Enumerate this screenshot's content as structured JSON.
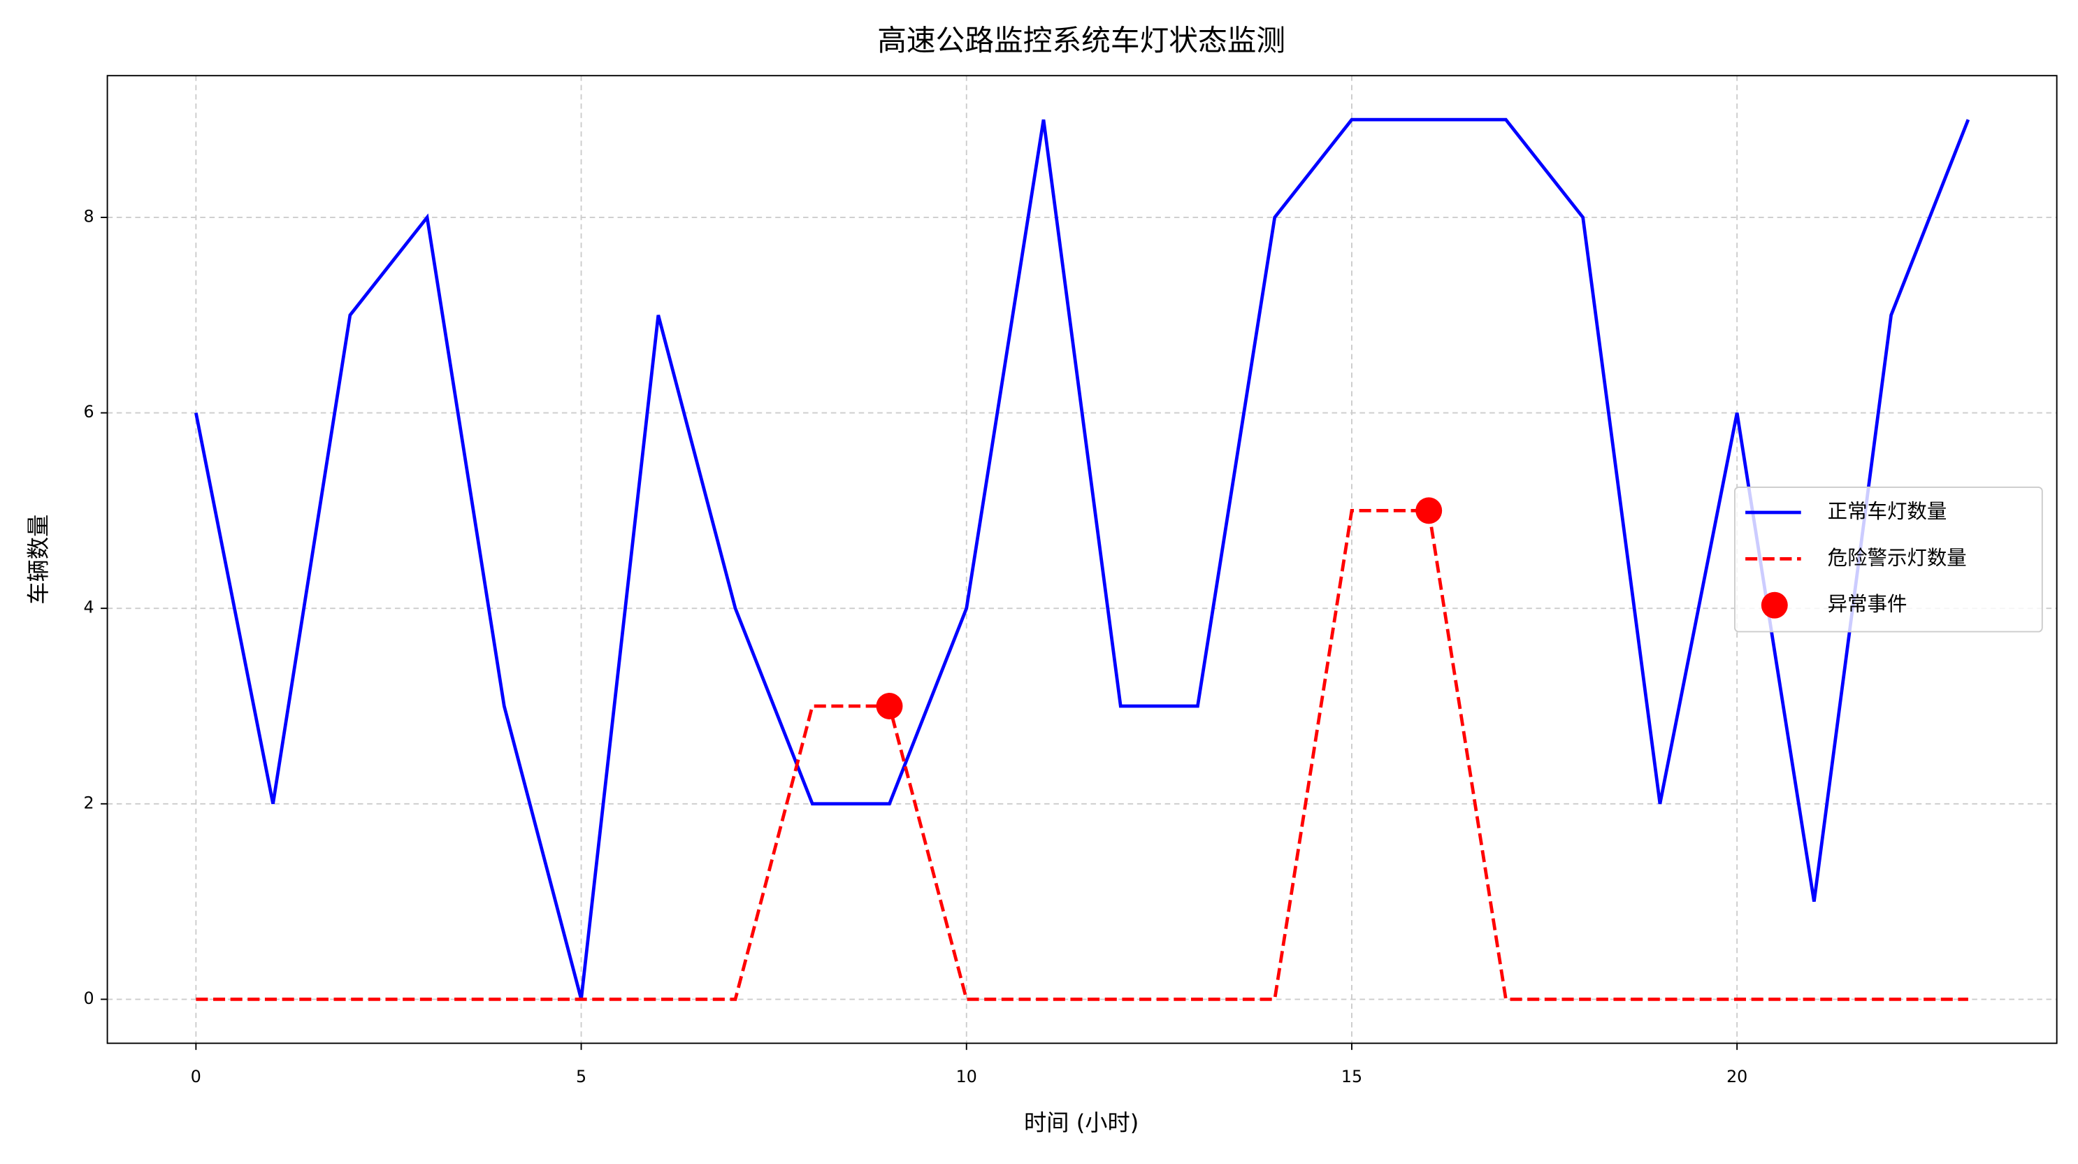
{
  "chart_data": {
    "type": "line",
    "title": "高速公路监控系统车灯状态监测",
    "x_label": "时间 (小时)",
    "y_label": "车辆数量",
    "x": [
      0,
      1,
      2,
      3,
      4,
      5,
      6,
      7,
      8,
      9,
      10,
      11,
      12,
      13,
      14,
      15,
      16,
      17,
      18,
      19,
      20,
      21,
      22,
      23
    ],
    "series": [
      {
        "name": "正常车灯数量",
        "type": "line",
        "color": "#0000ff",
        "dash": "solid",
        "values": [
          6,
          2,
          7,
          8,
          3,
          0,
          7,
          4,
          2,
          2,
          4,
          9,
          3,
          3,
          8,
          9,
          9,
          9,
          8,
          2,
          6,
          1,
          7,
          9
        ]
      },
      {
        "name": "危险警示灯数量",
        "type": "line",
        "color": "#ff0000",
        "dash": "dashed",
        "values": [
          0,
          0,
          0,
          0,
          0,
          0,
          0,
          0,
          3,
          3,
          0,
          0,
          0,
          0,
          0,
          5,
          5,
          0,
          0,
          0,
          0,
          0,
          0,
          0
        ]
      },
      {
        "name": "异常事件",
        "type": "scatter",
        "color": "#ff0000",
        "x": [
          9,
          16
        ],
        "values": [
          3,
          5
        ]
      }
    ],
    "xlim": [
      -1.15,
      24.15
    ],
    "xticks": [
      0,
      5,
      10,
      15,
      20
    ],
    "ylim": [
      -0.45,
      9.45
    ],
    "yticks": [
      0,
      2,
      4,
      6,
      8
    ],
    "grid": true,
    "legend": "center right"
  }
}
